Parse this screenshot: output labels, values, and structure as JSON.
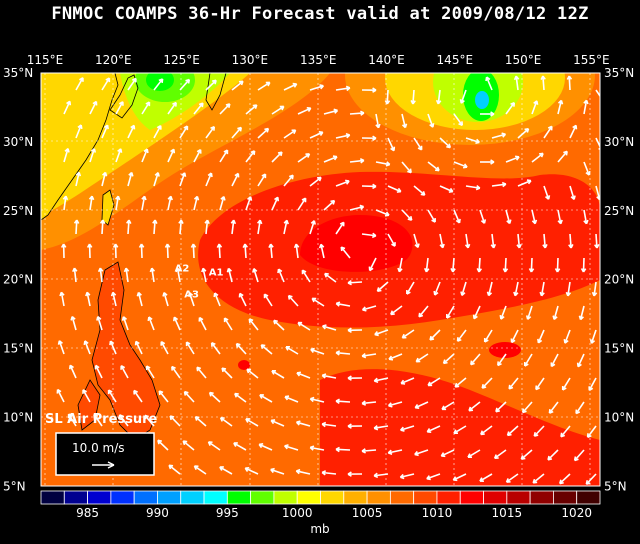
{
  "title": "FNMOC COAMPS 36-Hr Forecast valid at 2009/08/12 12Z",
  "lon_labels": [
    "115°E",
    "120°E",
    "125°E",
    "130°E",
    "135°E",
    "140°E",
    "145°E",
    "150°E",
    "155°E"
  ],
  "lat_labels": [
    "35°N",
    "30°N",
    "25°N",
    "20°N",
    "15°N",
    "10°N",
    "5°N"
  ],
  "points": [
    {
      "name": "A1",
      "lon": 127.0,
      "lat": 20.3
    },
    {
      "name": "A2",
      "lon": 124.5,
      "lat": 20.6
    },
    {
      "name": "A3",
      "lon": 125.2,
      "lat": 18.7
    }
  ],
  "panel": {
    "title": "SL Air Pressure",
    "reference": "10.0 m/s"
  },
  "colorbar": {
    "labels": [
      "985",
      "990",
      "995",
      "1000",
      "1005",
      "1010",
      "1015",
      "1020"
    ],
    "unit": "mb",
    "colors": [
      "#000040",
      "#000090",
      "#0000d0",
      "#0030ff",
      "#0070ff",
      "#00a0ff",
      "#00d0ff",
      "#00ffff",
      "#00ff00",
      "#60ff00",
      "#c0ff00",
      "#ffff00",
      "#ffd700",
      "#ffb000",
      "#ff9000",
      "#ff6a00",
      "#ff4a00",
      "#ff2000",
      "#ff0000",
      "#e00000",
      "#b80000",
      "#900000",
      "#680000",
      "#400000"
    ]
  },
  "map_colors": {
    "land": "#ffffff",
    "coast": "#000000",
    "grid": "#ffffff"
  }
}
